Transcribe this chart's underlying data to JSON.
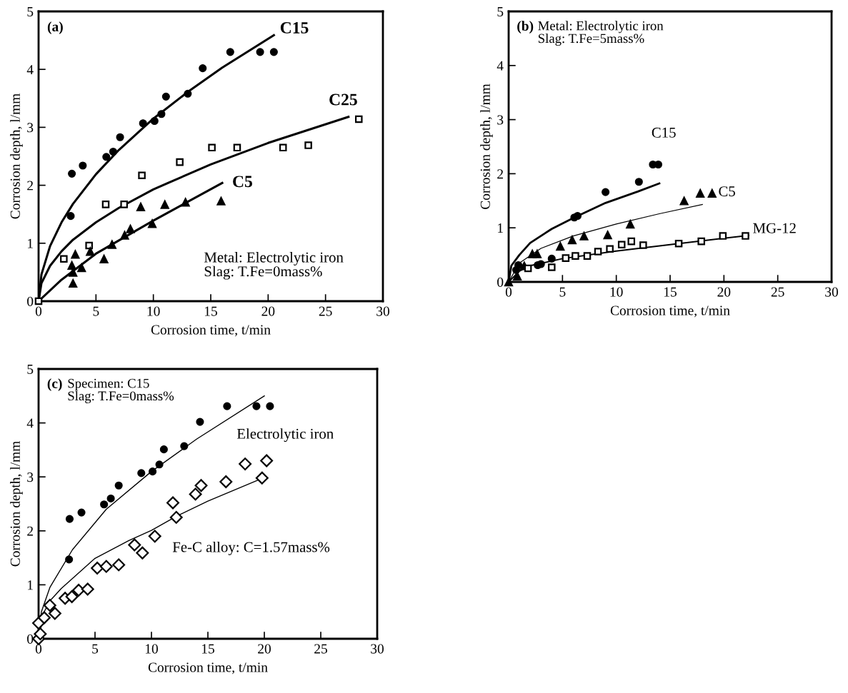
{
  "chart_data": [
    {
      "type": "scatter",
      "title": "(a)",
      "xlabel": "Corrosion time, t/min",
      "ylabel": "Corrosion depth, l/mm",
      "xlim": [
        0,
        30
      ],
      "ylim": [
        0,
        5
      ],
      "xticks": [
        0,
        5,
        10,
        15,
        20,
        25,
        30
      ],
      "yticks": [
        0,
        1,
        2,
        3,
        4,
        5
      ],
      "grid": false,
      "legend": false,
      "annotations": [
        "Metal: Electrolytic iron\nSlag: T.Fe=0mass%"
      ],
      "series": [
        {
          "type": "scatter",
          "marker": "circle",
          "color": "#000000",
          "x": [
            2.8,
            2.9,
            3.85,
            5.9,
            6.5,
            7.1,
            9.1,
            10.1,
            10.7,
            11.1,
            13.0,
            14.3,
            16.7,
            19.3,
            20.5
          ],
          "values": [
            1.47,
            2.2,
            2.34,
            2.49,
            2.58,
            2.83,
            3.07,
            3.11,
            3.23,
            3.53,
            3.58,
            4.02,
            4.3,
            4.3,
            4.3
          ]
        },
        {
          "type": "line",
          "name": "C15",
          "color": "#000000",
          "x": [
            0,
            0.25,
            1,
            2,
            3,
            5,
            7,
            10,
            13,
            16,
            20.5
          ],
          "values": [
            0,
            0.46,
            0.95,
            1.36,
            1.68,
            2.19,
            2.61,
            3.15,
            3.61,
            4.03,
            4.59
          ]
        },
        {
          "type": "scatter",
          "marker": "square",
          "color": "#000000",
          "x": [
            0,
            2.2,
            4.4,
            5.85,
            7.45,
            9.0,
            12.3,
            15.1,
            17.3,
            21.3,
            23.5,
            27.9
          ],
          "values": [
            0,
            0.73,
            0.96,
            1.67,
            1.67,
            2.17,
            2.4,
            2.65,
            2.65,
            2.65,
            2.69,
            3.14
          ]
        },
        {
          "type": "line",
          "name": "C25",
          "color": "#000000",
          "x": [
            0,
            0.25,
            1,
            2,
            3,
            5,
            7,
            10,
            15,
            20,
            27
          ],
          "values": [
            0,
            0.31,
            0.61,
            0.86,
            1.06,
            1.36,
            1.61,
            1.93,
            2.36,
            2.73,
            3.18
          ]
        },
        {
          "type": "scatter",
          "marker": "triangle",
          "color": "#000000",
          "x": [
            2.9,
            3.0,
            3.0,
            3.2,
            3.75,
            4.5,
            5.7,
            6.4,
            7.5,
            8.0,
            8.9,
            9.9,
            11.0,
            12.8,
            15.9
          ],
          "values": [
            0.62,
            0.31,
            0.5,
            0.81,
            0.58,
            0.86,
            0.73,
            0.98,
            1.14,
            1.25,
            1.63,
            1.34,
            1.67,
            1.71,
            1.73
          ]
        },
        {
          "type": "line",
          "name": "C5",
          "color": "#000000",
          "x": [
            0,
            2,
            5,
            10,
            16
          ],
          "values": [
            0,
            0.37,
            0.82,
            1.39,
            2.04
          ]
        }
      ]
    },
    {
      "type": "scatter",
      "title": "(b)",
      "xlabel": "Corrosion time, t/min",
      "ylabel": "Corrosion depth, l/mm",
      "xlim": [
        0,
        30
      ],
      "ylim": [
        0,
        5
      ],
      "xticks": [
        0,
        5,
        10,
        15,
        20,
        25,
        30
      ],
      "yticks": [
        0,
        1,
        2,
        3,
        4,
        5
      ],
      "grid": false,
      "legend": false,
      "annotations": [
        "Metal: Electrolytic iron\nSlag: T.Fe=5mass%"
      ],
      "series": [
        {
          "type": "scatter",
          "marker": "circle",
          "color": "#000000",
          "x": [
            0.7,
            0.9,
            2.7,
            3.0,
            4.0,
            6.1,
            6.4,
            9.0,
            12.1,
            13.4,
            13.9
          ],
          "values": [
            0.22,
            0.31,
            0.31,
            0.33,
            0.43,
            1.19,
            1.22,
            1.66,
            1.85,
            2.17,
            2.17
          ]
        },
        {
          "type": "line",
          "name": "C15",
          "color": "#000000",
          "x": [
            0,
            0.25,
            1,
            2,
            4,
            6,
            9,
            12,
            14
          ],
          "values": [
            0,
            0.3,
            0.5,
            0.72,
            0.98,
            1.18,
            1.46,
            1.67,
            1.82
          ]
        },
        {
          "type": "scatter",
          "marker": "triangle",
          "color": "#000000",
          "x": [
            0,
            0.8,
            1.45,
            2.2,
            2.65,
            4.8,
            5.9,
            7.0,
            9.2,
            11.3,
            16.3,
            17.8,
            18.9
          ],
          "values": [
            0,
            0.11,
            0.3,
            0.52,
            0.52,
            0.66,
            0.78,
            0.85,
            0.87,
            1.07,
            1.5,
            1.64,
            1.64
          ]
        },
        {
          "type": "line",
          "name": "C5",
          "color": "#000000",
          "x": [
            0,
            1,
            3,
            6,
            10,
            14,
            18
          ],
          "values": [
            0,
            0.35,
            0.62,
            0.85,
            1.07,
            1.26,
            1.43
          ]
        },
        {
          "type": "scatter",
          "marker": "square",
          "color": "#000000",
          "x": [
            1.8,
            4.0,
            5.3,
            6.2,
            7.3,
            8.3,
            9.4,
            10.5,
            11.4,
            12.5,
            15.8,
            17.9,
            19.9,
            22.0
          ],
          "values": [
            0.25,
            0.27,
            0.44,
            0.48,
            0.48,
            0.56,
            0.61,
            0.69,
            0.75,
            0.68,
            0.71,
            0.75,
            0.85,
            0.85
          ]
        },
        {
          "type": "line",
          "name": "MG-12",
          "color": "#000000",
          "x": [
            0,
            1,
            2,
            5,
            10,
            15,
            22.3
          ],
          "values": [
            0,
            0.2,
            0.3,
            0.43,
            0.57,
            0.69,
            0.86
          ]
        }
      ]
    },
    {
      "type": "scatter",
      "title": "(c)",
      "xlabel": "Corrosion time, t/min",
      "ylabel": "Corrosion depth, l/mm",
      "xlim": [
        0,
        30
      ],
      "ylim": [
        0,
        5
      ],
      "xticks": [
        0,
        5,
        10,
        15,
        20,
        25,
        30
      ],
      "yticks": [
        0,
        1,
        2,
        3,
        4,
        5
      ],
      "grid": false,
      "legend": false,
      "annotations": [
        "Specimen: C15\nSlag: T.Fe=0mass%",
        "Electrolytic iron",
        "Fe-C alloy: C=1.57mass%"
      ],
      "series": [
        {
          "type": "scatter",
          "marker": "circle",
          "color": "#000000",
          "x": [
            2.7,
            2.75,
            3.8,
            5.8,
            6.4,
            7.1,
            9.1,
            10.1,
            10.7,
            11.1,
            12.9,
            14.3,
            16.7,
            19.3,
            20.5
          ],
          "values": [
            1.47,
            2.22,
            2.34,
            2.49,
            2.6,
            2.84,
            3.07,
            3.1,
            3.23,
            3.51,
            3.57,
            4.02,
            4.31,
            4.31,
            4.31
          ]
        },
        {
          "type": "line",
          "color": "#000000",
          "x": [
            0,
            0.25,
            1,
            3,
            6,
            10,
            14,
            20
          ],
          "values": [
            0,
            0.5,
            0.95,
            1.65,
            2.4,
            3.1,
            3.7,
            4.5
          ]
        },
        {
          "type": "scatter",
          "marker": "diamond",
          "color": "#000000",
          "x": [
            0,
            0.15,
            0,
            0.5,
            1.0,
            1.45,
            2.35,
            2.95,
            3.55,
            4.35,
            5.2,
            6.0,
            7.1,
            8.5,
            9.2,
            10.3,
            11.9,
            12.2,
            13.9,
            14.4,
            16.6,
            18.3,
            19.8,
            20.2
          ],
          "values": [
            0,
            0.09,
            0.29,
            0.39,
            0.62,
            0.47,
            0.75,
            0.78,
            0.9,
            0.92,
            1.31,
            1.34,
            1.37,
            1.74,
            1.59,
            1.9,
            2.52,
            2.25,
            2.68,
            2.84,
            2.91,
            3.24,
            2.98,
            3.3
          ]
        },
        {
          "type": "line",
          "color": "#000000",
          "x": [
            0,
            0.5,
            1,
            2,
            5,
            8,
            10,
            12.3,
            15,
            19.9
          ],
          "values": [
            0,
            0.5,
            0.7,
            0.93,
            1.49,
            1.82,
            2.01,
            2.28,
            2.55,
            2.98
          ]
        }
      ]
    }
  ]
}
